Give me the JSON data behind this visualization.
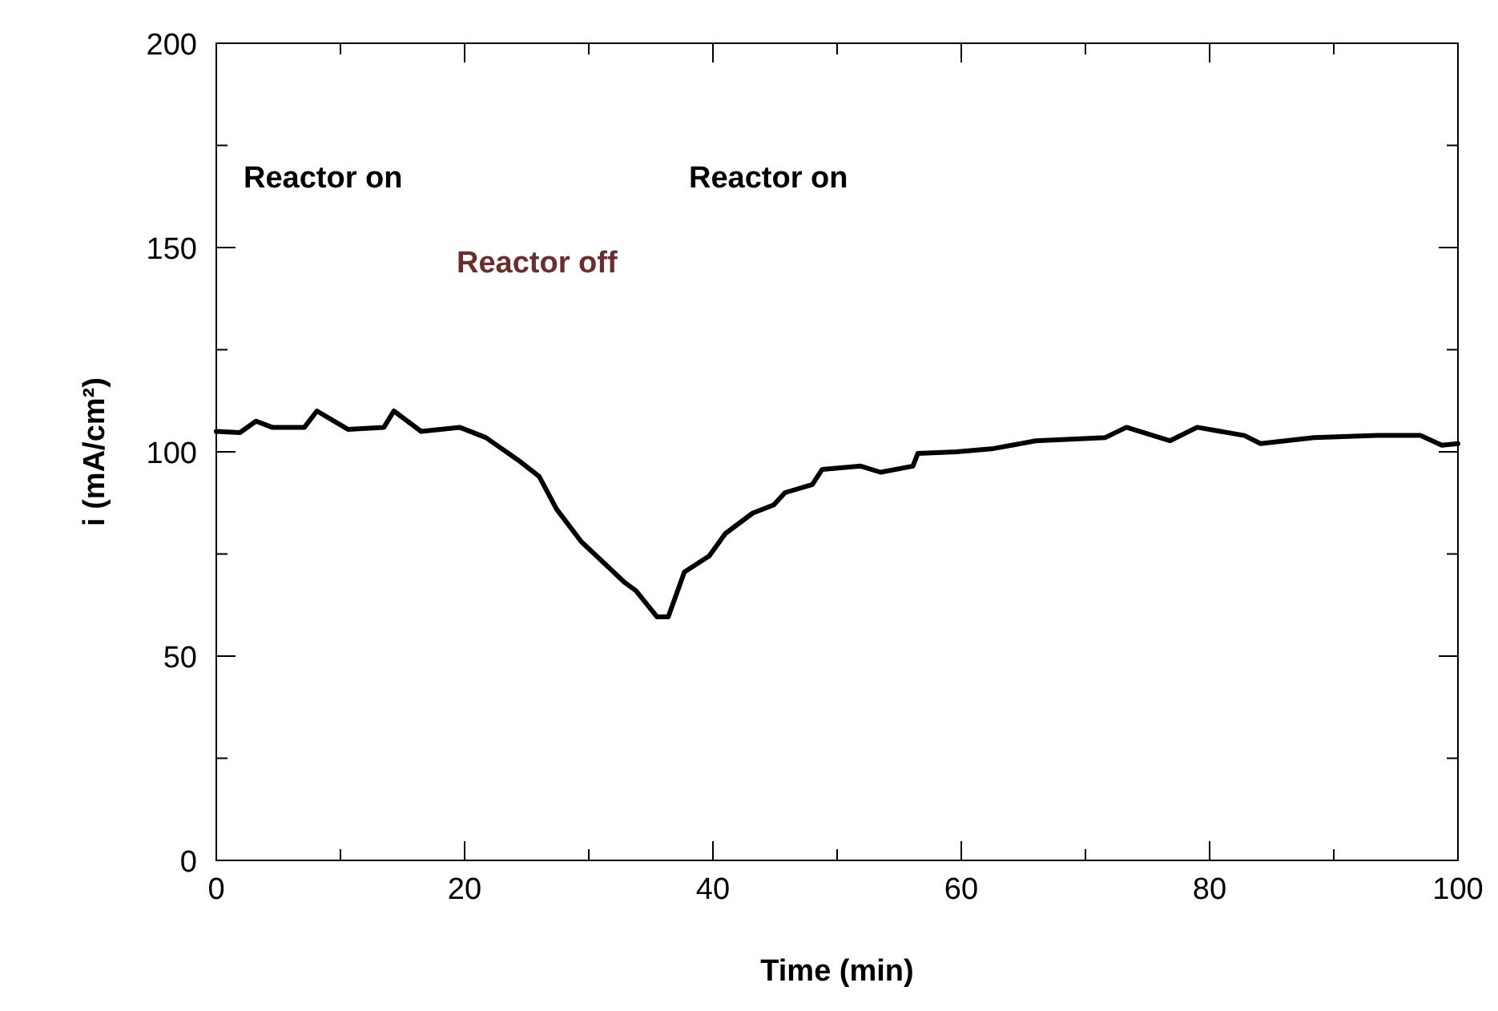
{
  "chart_data": {
    "type": "line",
    "xlabel": "Time (min)",
    "ylabel": "i (mA/cm²)",
    "xlim": [
      0,
      100
    ],
    "ylim": [
      0,
      200
    ],
    "xticks": [
      0,
      {
        "value": 10,
        "label": null
      },
      20,
      {
        "value": 30,
        "label": null
      },
      40,
      {
        "value": 50,
        "label": null
      },
      60,
      {
        "value": 70,
        "label": null
      },
      80,
      {
        "value": 90,
        "label": null
      },
      100
    ],
    "yticks": [
      0,
      {
        "value": 25,
        "label": null
      },
      50,
      {
        "value": 75,
        "label": null
      },
      100,
      {
        "value": 125,
        "label": null
      },
      150,
      {
        "value": 175,
        "label": null
      },
      200
    ],
    "grid": false,
    "marker": "none",
    "line_style": "solid",
    "series": [
      {
        "color": "#000000",
        "x": [
          0,
          1.9,
          3.2,
          4.5,
          7.1,
          8.1,
          10.6,
          13.5,
          14.3,
          16.5,
          19.6,
          21.7,
          24.3,
          26,
          27.4,
          29.4,
          32.9,
          33.8,
          35.5,
          36.4,
          37.7,
          39.7,
          41,
          43.2,
          44.9,
          45.8,
          48,
          48.8,
          51.9,
          53.5,
          56.1,
          56.5,
          59.6,
          62.6,
          66,
          71.6,
          73.3,
          76.8,
          79,
          82.8,
          84.1,
          88.4,
          93.5,
          97,
          98.7,
          100
        ],
        "values": [
          105,
          104.7,
          107.5,
          106,
          106,
          110,
          105.5,
          106,
          110,
          105,
          106,
          103.5,
          98,
          94,
          86,
          78,
          68,
          66,
          59.6,
          59.6,
          70.6,
          74.5,
          80,
          85,
          87,
          90,
          92,
          95.7,
          96.5,
          95,
          96.5,
          99.6,
          100,
          100.8,
          102.7,
          103.5,
          106,
          102.7,
          106,
          104,
          102,
          103.5,
          104,
          104,
          101.6,
          102
        ]
      }
    ],
    "annotations": [
      "Reactor on",
      "Reactor off",
      "Reactor on"
    ]
  }
}
